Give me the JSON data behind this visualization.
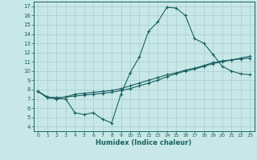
{
  "title": "",
  "xlabel": "Humidex (Indice chaleur)",
  "background_color": "#c8e8e8",
  "grid_color": "#a8cccc",
  "line_color": "#1a6060",
  "xlim": [
    -0.5,
    23.5
  ],
  "ylim": [
    3.5,
    17.5
  ],
  "xticks": [
    0,
    1,
    2,
    3,
    4,
    5,
    6,
    7,
    8,
    9,
    10,
    11,
    12,
    13,
    14,
    15,
    16,
    17,
    18,
    19,
    20,
    21,
    22,
    23
  ],
  "yticks": [
    4,
    5,
    6,
    7,
    8,
    9,
    10,
    11,
    12,
    13,
    14,
    15,
    16,
    17
  ],
  "line1_x": [
    0,
    1,
    2,
    3,
    4,
    5,
    6,
    7,
    8,
    9,
    10,
    11,
    12,
    13,
    14,
    15,
    16,
    17,
    18,
    19,
    20,
    21,
    22,
    23
  ],
  "line1_y": [
    7.8,
    7.1,
    7.0,
    7.0,
    5.5,
    5.3,
    5.5,
    4.8,
    4.4,
    7.5,
    9.8,
    11.5,
    14.3,
    15.3,
    16.9,
    16.8,
    16.0,
    13.5,
    13.0,
    11.8,
    10.5,
    10.0,
    9.7,
    9.6
  ],
  "line2_x": [
    0,
    1,
    2,
    3,
    4,
    5,
    6,
    7,
    8,
    9,
    10,
    11,
    12,
    13,
    14,
    15,
    16,
    17,
    18,
    19,
    20,
    21,
    22,
    23
  ],
  "line2_y": [
    7.8,
    7.2,
    7.1,
    7.2,
    7.3,
    7.4,
    7.5,
    7.6,
    7.7,
    7.9,
    8.1,
    8.4,
    8.7,
    9.0,
    9.4,
    9.7,
    10.0,
    10.2,
    10.5,
    10.8,
    11.0,
    11.2,
    11.4,
    11.6
  ],
  "line3_x": [
    0,
    1,
    2,
    3,
    4,
    5,
    6,
    7,
    8,
    9,
    10,
    11,
    12,
    13,
    14,
    15,
    16,
    17,
    18,
    19,
    20,
    21,
    22,
    23
  ],
  "line3_y": [
    7.8,
    7.2,
    7.1,
    7.2,
    7.5,
    7.6,
    7.7,
    7.8,
    7.9,
    8.1,
    8.4,
    8.7,
    9.0,
    9.3,
    9.6,
    9.8,
    10.1,
    10.3,
    10.6,
    10.9,
    11.1,
    11.2,
    11.3,
    11.4
  ]
}
